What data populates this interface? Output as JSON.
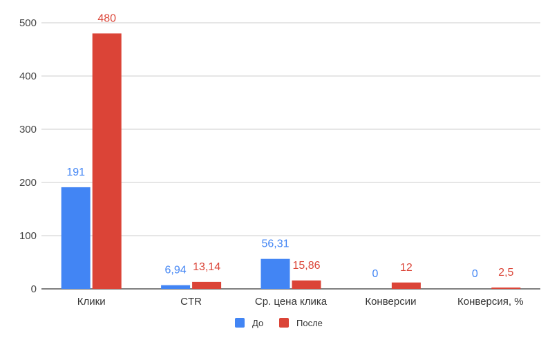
{
  "chart_data": {
    "type": "bar",
    "title": "",
    "xlabel": "",
    "ylabel": "",
    "categories": [
      "Клики",
      "CTR",
      "Ср. цена клика",
      "Конверсии",
      "Конверсия, %"
    ],
    "series": [
      {
        "name": "До",
        "color": "#4285f4",
        "values": [
          191,
          6.94,
          56.31,
          0,
          0
        ],
        "labels": [
          "191",
          "6,94",
          "56,31",
          "0",
          "0"
        ]
      },
      {
        "name": "После",
        "color": "#db4437",
        "values": [
          480,
          13.14,
          15.86,
          12,
          2.5
        ],
        "labels": [
          "480",
          "13,14",
          "15,86",
          "12",
          "2,5"
        ]
      }
    ],
    "ylim": [
      0,
      500
    ],
    "yticks": [
      0,
      100,
      200,
      300,
      400,
      500
    ],
    "grid": true,
    "legend_position": "bottom"
  }
}
